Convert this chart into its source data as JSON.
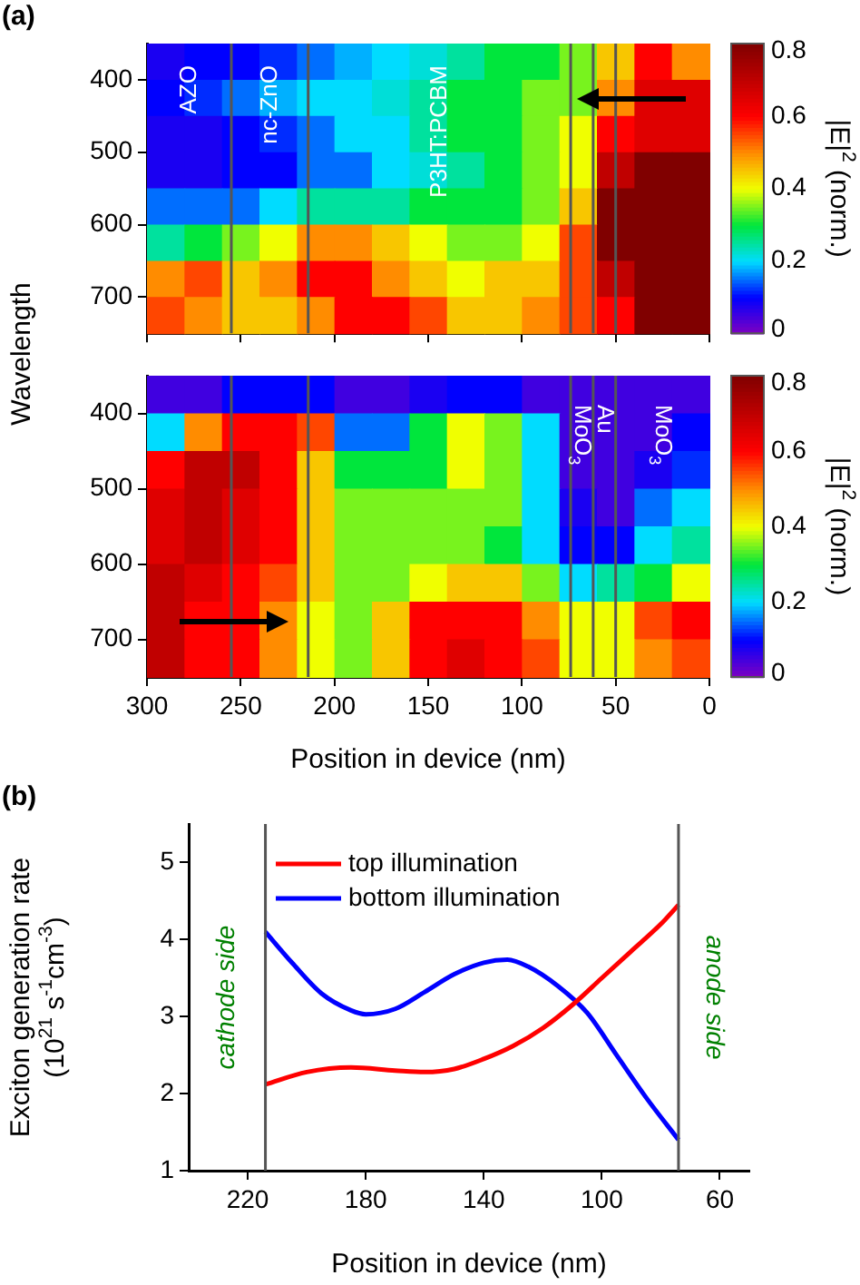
{
  "chart_data": [
    {
      "type": "heatmap",
      "title": "(a)",
      "ylabel": "Wavelength",
      "clabel": "|E|$^{2}$ (norm.)",
      "x": [
        290,
        270,
        250,
        230,
        210,
        190,
        170,
        150,
        130,
        110,
        90,
        70,
        50,
        30,
        10
      ],
      "y": [
        375,
        425,
        475,
        525,
        575,
        625,
        675,
        725
      ],
      "xlim": [
        300,
        0
      ],
      "xticks": [
        300,
        250,
        200,
        150,
        100,
        50,
        0
      ],
      "ylim": [
        750,
        350
      ],
      "yticks": [
        400,
        500,
        600,
        700
      ],
      "tick_labels": "y",
      "clim": [
        0,
        0.8
      ],
      "cticks": [
        0,
        0.2,
        0.4,
        0.6,
        0.8
      ],
      "cells": [
        [
          0.08,
          0.1,
          0.1,
          0.12,
          0.15,
          0.18,
          0.2,
          0.22,
          0.25,
          0.3,
          0.3,
          0.35,
          0.45,
          0.6,
          0.5
        ],
        [
          0.1,
          0.12,
          0.15,
          0.18,
          0.2,
          0.2,
          0.22,
          0.25,
          0.3,
          0.3,
          0.35,
          0.35,
          0.5,
          0.65,
          0.65
        ],
        [
          0.08,
          0.08,
          0.1,
          0.12,
          0.15,
          0.2,
          0.2,
          0.25,
          0.3,
          0.3,
          0.35,
          0.4,
          0.6,
          0.65,
          0.65
        ],
        [
          0.08,
          0.08,
          0.1,
          0.1,
          0.15,
          0.15,
          0.2,
          0.22,
          0.25,
          0.3,
          0.35,
          0.4,
          0.7,
          0.8,
          0.8
        ],
        [
          0.15,
          0.15,
          0.15,
          0.2,
          0.25,
          0.25,
          0.25,
          0.3,
          0.3,
          0.3,
          0.35,
          0.45,
          0.8,
          0.8,
          0.8
        ],
        [
          0.25,
          0.3,
          0.35,
          0.4,
          0.5,
          0.5,
          0.45,
          0.4,
          0.35,
          0.35,
          0.4,
          0.55,
          0.8,
          0.8,
          0.8
        ],
        [
          0.5,
          0.55,
          0.45,
          0.5,
          0.6,
          0.6,
          0.5,
          0.45,
          0.4,
          0.45,
          0.45,
          0.55,
          0.7,
          0.8,
          0.8
        ],
        [
          0.55,
          0.5,
          0.45,
          0.45,
          0.5,
          0.6,
          0.6,
          0.55,
          0.45,
          0.45,
          0.5,
          0.55,
          0.6,
          0.8,
          0.8
        ]
      ],
      "ref_lines": [
        {
          "axis": "x",
          "value": 255,
          "color": "#555555"
        },
        {
          "axis": "x",
          "value": 214,
          "color": "#555555"
        },
        {
          "axis": "x",
          "value": 74,
          "color": "#555555"
        },
        {
          "axis": "x",
          "value": 62,
          "color": "#555555"
        },
        {
          "axis": "x",
          "value": 50,
          "color": "#555555"
        }
      ],
      "annotations": [
        "AZO",
        "nc-ZnO",
        "P3HT:PCBM"
      ]
    },
    {
      "type": "heatmap",
      "xlabel": "Position in device (nm)",
      "clabel": "|E|$^{2}$ (norm.)",
      "x": [
        290,
        270,
        250,
        230,
        210,
        190,
        170,
        150,
        130,
        110,
        90,
        70,
        50,
        30,
        10
      ],
      "y": [
        375,
        425,
        475,
        525,
        575,
        625,
        675,
        725
      ],
      "xlim": [
        300,
        0
      ],
      "xticks": [
        300,
        250,
        200,
        150,
        100,
        50,
        0
      ],
      "ylim": [
        750,
        350
      ],
      "yticks": [
        400,
        500,
        600,
        700
      ],
      "clim": [
        0,
        0.8
      ],
      "cticks": [
        0,
        0.2,
        0.4,
        0.6,
        0.8
      ],
      "cells": [
        [
          0.05,
          0.05,
          0.1,
          0.1,
          0.1,
          0.05,
          0.05,
          0.08,
          0.1,
          0.1,
          0.05,
          0.05,
          0.05,
          0.05,
          0.05
        ],
        [
          0.2,
          0.5,
          0.6,
          0.6,
          0.55,
          0.15,
          0.15,
          0.3,
          0.4,
          0.35,
          0.2,
          0.05,
          0.05,
          0.05,
          0.1
        ],
        [
          0.6,
          0.7,
          0.7,
          0.6,
          0.45,
          0.3,
          0.3,
          0.3,
          0.4,
          0.35,
          0.2,
          0.05,
          0.05,
          0.08,
          0.12
        ],
        [
          0.65,
          0.7,
          0.65,
          0.6,
          0.45,
          0.35,
          0.35,
          0.35,
          0.35,
          0.35,
          0.2,
          0.08,
          0.05,
          0.15,
          0.2
        ],
        [
          0.65,
          0.7,
          0.65,
          0.6,
          0.45,
          0.35,
          0.35,
          0.35,
          0.35,
          0.3,
          0.2,
          0.1,
          0.1,
          0.2,
          0.25
        ],
        [
          0.7,
          0.65,
          0.6,
          0.55,
          0.45,
          0.35,
          0.35,
          0.4,
          0.45,
          0.45,
          0.35,
          0.2,
          0.25,
          0.3,
          0.4
        ],
        [
          0.7,
          0.6,
          0.6,
          0.5,
          0.4,
          0.35,
          0.45,
          0.6,
          0.6,
          0.6,
          0.5,
          0.4,
          0.4,
          0.55,
          0.6
        ],
        [
          0.7,
          0.6,
          0.6,
          0.5,
          0.4,
          0.35,
          0.45,
          0.6,
          0.65,
          0.6,
          0.55,
          0.4,
          0.4,
          0.5,
          0.55
        ]
      ],
      "ref_lines": [
        {
          "axis": "x",
          "value": 255,
          "color": "#555555"
        },
        {
          "axis": "x",
          "value": 214,
          "color": "#555555"
        },
        {
          "axis": "x",
          "value": 74,
          "color": "#555555"
        },
        {
          "axis": "x",
          "value": 62,
          "color": "#555555"
        },
        {
          "axis": "x",
          "value": 50,
          "color": "#555555"
        }
      ],
      "annotations": [
        "MoO$_{3}$",
        "Au",
        "MoO$_{3}$"
      ]
    },
    {
      "type": "line",
      "title": "(b)",
      "xlabel": "Position in device (nm)",
      "ylabel": "Exciton generation rate (10$^{21}$ s$^{-1}$cm$^{-3}$)",
      "xlim": [
        240,
        50
      ],
      "xticks": [
        220,
        180,
        140,
        100,
        60
      ],
      "ylim": [
        1,
        5.5
      ],
      "yticks": [
        1,
        2,
        3,
        4,
        5
      ],
      "grid": false,
      "legend": "top left",
      "marker": "none",
      "line_style": "solid",
      "series": [
        {
          "name": "top illumination",
          "color": "#ff0000",
          "x": [
            214,
            200,
            185,
            170,
            160,
            150,
            140,
            130,
            120,
            110,
            100,
            90,
            80,
            74
          ],
          "values": [
            2.12,
            2.28,
            2.34,
            2.3,
            2.28,
            2.32,
            2.45,
            2.62,
            2.85,
            3.15,
            3.5,
            3.85,
            4.2,
            4.45
          ]
        },
        {
          "name": "bottom illumination",
          "color": "#0000ff",
          "x": [
            214,
            205,
            195,
            185,
            180,
            170,
            160,
            150,
            140,
            132,
            125,
            115,
            105,
            95,
            85,
            74
          ],
          "values": [
            4.1,
            3.7,
            3.3,
            3.08,
            3.03,
            3.1,
            3.32,
            3.55,
            3.7,
            3.74,
            3.65,
            3.4,
            3.05,
            2.5,
            1.95,
            1.4
          ]
        }
      ],
      "ref_lines": [
        {
          "axis": "x",
          "value": 214,
          "color": "#555555"
        },
        {
          "axis": "x",
          "value": 74,
          "color": "#555555"
        }
      ],
      "annotations": [
        "cathode side",
        "anode side"
      ]
    }
  ]
}
